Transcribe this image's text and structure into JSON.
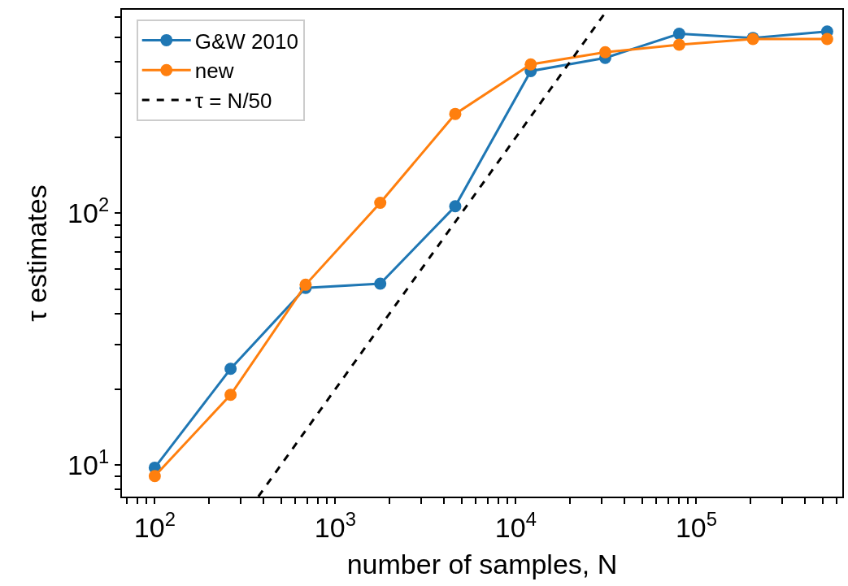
{
  "chart_data": {
    "type": "line",
    "xlabel": "number of samples, N",
    "ylabel": "τ estimates",
    "log": "xy",
    "legend": "top left",
    "marker": "circle",
    "xlim": [
      65.8,
      644000
    ],
    "ylim": [
      7.49,
      643
    ],
    "xticks": [
      {
        "value": 70,
        "label": null
      },
      {
        "value": 80,
        "label": null
      },
      {
        "value": 90,
        "label": null
      },
      {
        "value": 100,
        "label": "10$^{2}$"
      },
      {
        "value": 200,
        "label": null
      },
      {
        "value": 300,
        "label": null
      },
      {
        "value": 400,
        "label": null
      },
      {
        "value": 500,
        "label": null
      },
      {
        "value": 600,
        "label": null
      },
      {
        "value": 700,
        "label": null
      },
      {
        "value": 800,
        "label": null
      },
      {
        "value": 900,
        "label": null
      },
      {
        "value": 1000,
        "label": "10$^{3}$"
      },
      {
        "value": 2000,
        "label": null
      },
      {
        "value": 3000,
        "label": null
      },
      {
        "value": 4000,
        "label": null
      },
      {
        "value": 5000,
        "label": null
      },
      {
        "value": 6000,
        "label": null
      },
      {
        "value": 7000,
        "label": null
      },
      {
        "value": 8000,
        "label": null
      },
      {
        "value": 9000,
        "label": null
      },
      {
        "value": 10000,
        "label": "10$^{4}$"
      },
      {
        "value": 20000,
        "label": null
      },
      {
        "value": 30000,
        "label": null
      },
      {
        "value": 40000,
        "label": null
      },
      {
        "value": 50000,
        "label": null
      },
      {
        "value": 60000,
        "label": null
      },
      {
        "value": 70000,
        "label": null
      },
      {
        "value": 80000,
        "label": null
      },
      {
        "value": 90000,
        "label": null
      },
      {
        "value": 100000,
        "label": "10$^{5}$"
      },
      {
        "value": 200000,
        "label": null
      },
      {
        "value": 300000,
        "label": null
      },
      {
        "value": 400000,
        "label": null
      },
      {
        "value": 500000,
        "label": null
      },
      {
        "value": 600000,
        "label": null
      }
    ],
    "yticks": [
      {
        "value": 8,
        "label": null
      },
      {
        "value": 9,
        "label": null
      },
      {
        "value": 10,
        "label": "10$^{1}$"
      },
      {
        "value": 20,
        "label": null
      },
      {
        "value": 30,
        "label": null
      },
      {
        "value": 40,
        "label": null
      },
      {
        "value": 50,
        "label": null
      },
      {
        "value": 60,
        "label": null
      },
      {
        "value": 70,
        "label": null
      },
      {
        "value": 80,
        "label": null
      },
      {
        "value": 90,
        "label": null
      },
      {
        "value": 100,
        "label": "10$^{2}$"
      },
      {
        "value": 200,
        "label": null
      },
      {
        "value": 300,
        "label": null
      },
      {
        "value": 400,
        "label": null
      },
      {
        "value": 500,
        "label": null
      },
      {
        "value": 600,
        "label": null
      }
    ],
    "series": [
      {
        "name": "G&W 2010",
        "color": "#1f77b4",
        "x": [
          100,
          263,
          685,
          1775,
          4620,
          12100,
          31300,
          80400,
          206000,
          531000
        ],
        "values": [
          9.76,
          24.1,
          50.5,
          52.5,
          106.6,
          367,
          414,
          516,
          497,
          527
        ]
      },
      {
        "name": "new",
        "color": "#ff7f0e",
        "x": [
          100,
          263,
          685,
          1775,
          4620,
          12100,
          31300,
          80400,
          206000,
          531000
        ],
        "values": [
          9.04,
          19.0,
          52,
          110,
          248,
          390,
          436,
          467,
          492,
          492
        ]
      },
      {
        "name": "τ = N/50",
        "color": "#000000",
        "marker": "none",
        "line_style": "dashed",
        "x": [
          375,
          32150
        ],
        "values": [
          7.5,
          643
        ]
      }
    ]
  }
}
